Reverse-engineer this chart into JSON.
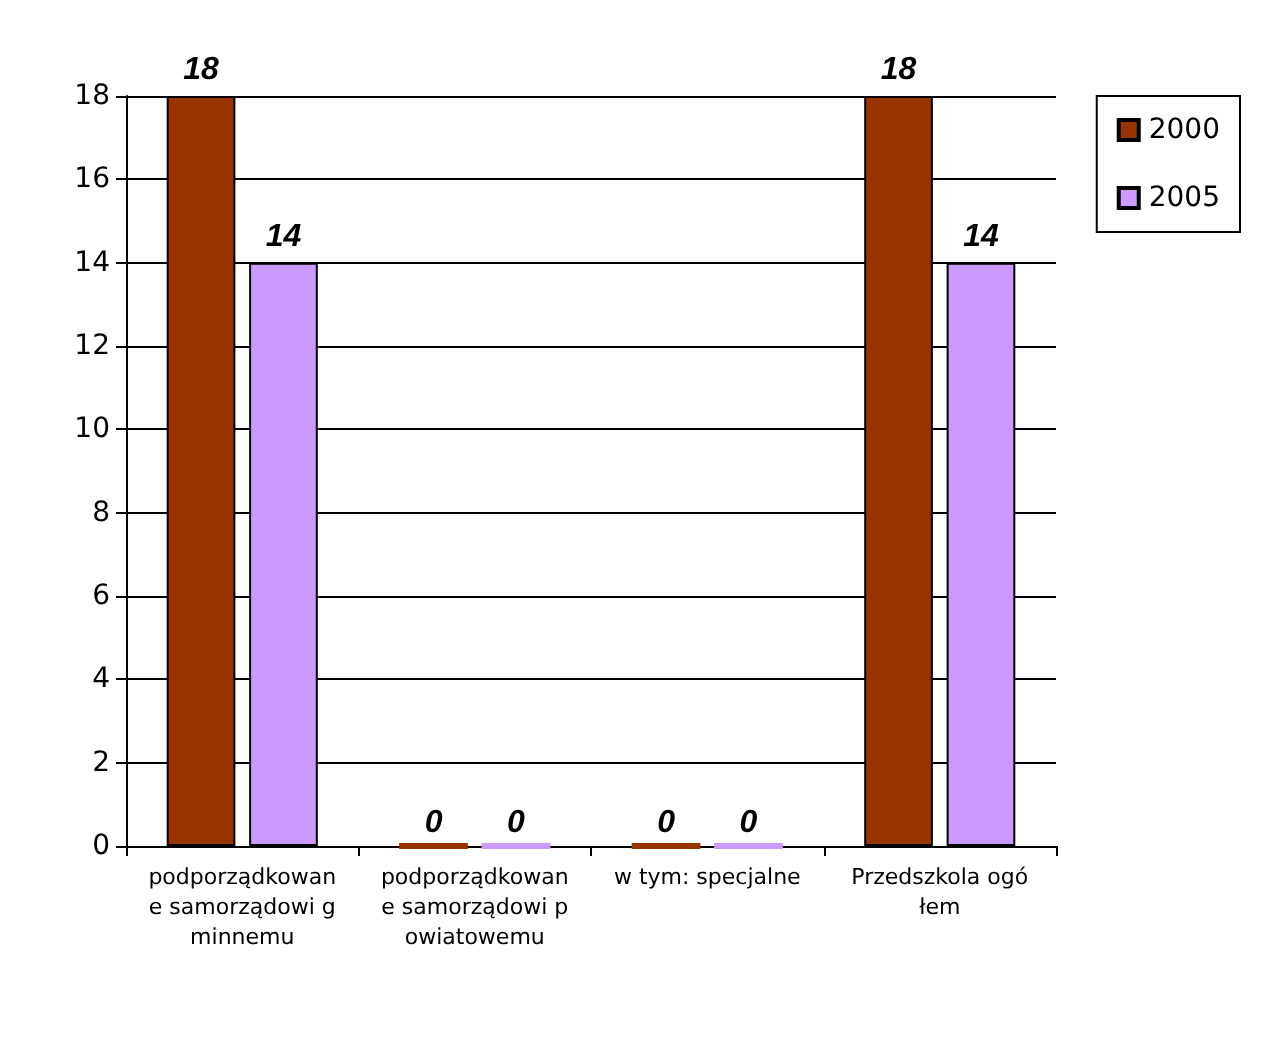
{
  "chart_data": {
    "type": "bar",
    "categories": [
      "podporządkowane samorządowi gminnemu",
      "podporządkowane samorządowi powiatowemu",
      "w tym: specjalne",
      "Przedszkola ogółem"
    ],
    "series": [
      {
        "name": "2000",
        "color": "#993300",
        "values": [
          18,
          0,
          0,
          18
        ]
      },
      {
        "name": "2005",
        "color": "#cc99ff",
        "values": [
          14,
          0,
          0,
          14
        ]
      }
    ],
    "ylim": [
      0,
      18
    ],
    "yticks": [
      0,
      2,
      4,
      6,
      8,
      10,
      12,
      14,
      16,
      18
    ],
    "grid": "y",
    "legend": "right",
    "data_labels": true
  }
}
